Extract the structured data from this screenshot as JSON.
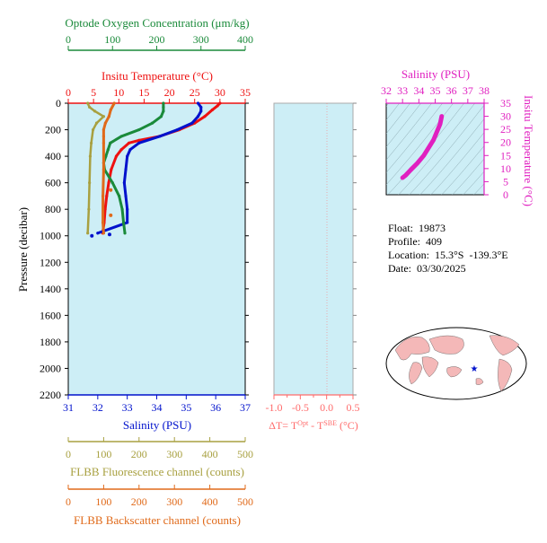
{
  "colors": {
    "oxygen": "#1a8a3a",
    "temperature": "#ee1111",
    "salinity": "#0011cc",
    "fluorescence": "#a8a040",
    "backscatter": "#e06a1a",
    "delta": "#ff6b6b",
    "ts": "#e020c0",
    "panel_bg": "#cdeef6",
    "map_land": "#f4b8b8",
    "map_ocean": "#ffffff"
  },
  "info": {
    "float": "Float:  19873",
    "profile": "Profile:  409",
    "location": "Location:  15.3°S  -139.3°E",
    "date": "Date:  03/30/2025"
  },
  "chart_data": [
    {
      "type": "line",
      "panel": "main_profile",
      "ylabel": "Pressure (decibar)",
      "ylim": [
        2200,
        0
      ],
      "yticks": [
        "0",
        "200",
        "400",
        "600",
        "800",
        "1000",
        "1200",
        "1400",
        "1600",
        "1800",
        "2000",
        "2200"
      ],
      "axes": {
        "oxygen": {
          "label": "Optode Oxygen Concentration (μm/kg)",
          "ticks": [
            "0",
            "100",
            "200",
            "300",
            "400"
          ],
          "range": [
            0,
            400
          ]
        },
        "temperature": {
          "label": "Insitu Temperature (°C)",
          "ticks": [
            "0",
            "5",
            "10",
            "15",
            "20",
            "25",
            "30",
            "35"
          ],
          "range": [
            0,
            35
          ]
        },
        "salinity": {
          "label": "Salinity (PSU)",
          "ticks": [
            "31",
            "32",
            "33",
            "34",
            "35",
            "36",
            "37"
          ],
          "range": [
            31,
            37
          ]
        },
        "fluorescence": {
          "label": "FLBB Fluorescence channel (counts)",
          "ticks": [
            "0",
            "100",
            "200",
            "300",
            "400",
            "500"
          ],
          "range": [
            0,
            500
          ]
        },
        "backscatter": {
          "label": "FLBB Backscatter channel (counts)",
          "ticks": [
            "0",
            "100",
            "200",
            "300",
            "400",
            "500"
          ],
          "range": [
            0,
            500
          ]
        }
      },
      "series": [
        {
          "key": "temperature",
          "name": "Insitu Temperature (°C)",
          "pressure": [
            0,
            20,
            50,
            100,
            150,
            200,
            250,
            280,
            300,
            350,
            400,
            500,
            600,
            700,
            800,
            900,
            980
          ],
          "values": [
            30,
            29.5,
            28.5,
            27,
            25,
            22,
            18,
            14,
            12,
            10.5,
            9.5,
            8.5,
            8,
            7.6,
            7.3,
            7.1,
            6.8
          ]
        },
        {
          "key": "salinity",
          "name": "Salinity (PSU)",
          "pressure": [
            0,
            30,
            60,
            100,
            150,
            200,
            250,
            300,
            350,
            400,
            500,
            600,
            700,
            800,
            900,
            980
          ],
          "values": [
            35.4,
            35.5,
            35.5,
            35.4,
            35.2,
            34.7,
            34.1,
            33.4,
            33.1,
            33.0,
            32.95,
            32.9,
            32.95,
            33.0,
            33.0,
            32.0
          ],
          "markers": [
            [
              31.8,
              1000
            ],
            [
              32.4,
              990
            ]
          ]
        },
        {
          "key": "oxygen",
          "name": "Optode Oxygen Concentration (μm/kg)",
          "pressure": [
            0,
            30,
            60,
            100,
            150,
            200,
            250,
            300,
            350,
            400,
            450,
            500,
            600,
            700,
            800,
            900,
            980
          ],
          "values": [
            215,
            215,
            215,
            210,
            190,
            160,
            120,
            95,
            90,
            85,
            80,
            82,
            100,
            115,
            122,
            125,
            128
          ]
        },
        {
          "key": "fluorescence",
          "name": "FLBB Fluorescence channel (counts)",
          "pressure": [
            0,
            30,
            60,
            100,
            150,
            200,
            300,
            400,
            600,
            800,
            980
          ],
          "values": [
            55,
            60,
            75,
            100,
            80,
            70,
            65,
            62,
            60,
            58,
            55
          ]
        },
        {
          "key": "backscatter",
          "name": "FLBB Backscatter channel (counts)",
          "pressure": [
            0,
            50,
            100,
            150,
            200,
            250,
            300,
            500,
            700,
            900,
            980
          ],
          "values": [
            130,
            120,
            115,
            105,
            100,
            100,
            100,
            100,
            98,
            98,
            100
          ],
          "markers": [
            [
              120,
              655
            ],
            [
              120,
              845
            ]
          ]
        }
      ]
    },
    {
      "type": "line",
      "panel": "delta_t",
      "xlabel": "ΔT= T^Opt - T^SBE (°C)",
      "xlim": [
        -1.0,
        0.5
      ],
      "xticks": [
        "-1.0",
        "-0.5",
        "0.0",
        "0.5"
      ],
      "ylim": [
        2200,
        0
      ],
      "series": []
    },
    {
      "type": "line",
      "panel": "ts_diagram",
      "xlabel": "Salinity (PSU)",
      "ylabel": "Insitu Temperature (°C)",
      "xticks": [
        "32",
        "33",
        "34",
        "35",
        "36",
        "37",
        "38"
      ],
      "xlim": [
        32,
        38
      ],
      "yticks": [
        "0",
        "5",
        "10",
        "15",
        "20",
        "25",
        "30",
        "35"
      ],
      "ylim": [
        0,
        35
      ],
      "series": [
        {
          "name": "T-S",
          "salinity": [
            33.0,
            33.2,
            33.5,
            33.9,
            34.3,
            34.6,
            34.9,
            35.1,
            35.3,
            35.4
          ],
          "temperature": [
            6.5,
            7.5,
            9.5,
            12,
            15,
            18,
            21,
            24,
            27,
            30
          ]
        }
      ]
    }
  ],
  "map": {
    "float_marker": "star-icon"
  }
}
